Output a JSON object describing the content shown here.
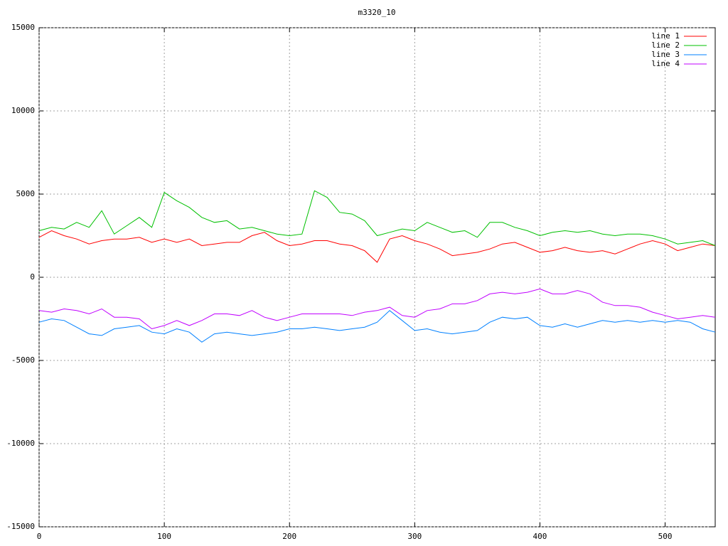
{
  "chart_data": {
    "type": "line",
    "title": "m3320_10",
    "x": [
      0,
      10,
      20,
      30,
      40,
      50,
      60,
      70,
      80,
      90,
      100,
      110,
      120,
      130,
      140,
      150,
      160,
      170,
      180,
      190,
      200,
      210,
      220,
      230,
      240,
      250,
      260,
      270,
      280,
      290,
      300,
      310,
      320,
      330,
      340,
      350,
      360,
      370,
      380,
      390,
      400,
      410,
      420,
      430,
      440,
      450,
      460,
      470,
      480,
      490,
      500,
      510,
      520,
      530,
      540
    ],
    "series": [
      {
        "name": "line 1",
        "color": "#ff0000",
        "values": [
          2400,
          2800,
          2500,
          2300,
          2000,
          2200,
          2300,
          2300,
          2400,
          2100,
          2300,
          2100,
          2300,
          1900,
          2000,
          2100,
          2100,
          2500,
          2700,
          2200,
          1900,
          2000,
          2200,
          2200,
          2000,
          1900,
          1600,
          900,
          2300,
          2500,
          2200,
          2000,
          1700,
          1300,
          1400,
          1500,
          1700,
          2000,
          2100,
          1800,
          1500,
          1600,
          1800,
          1600,
          1500,
          1600,
          1400,
          1700,
          2000,
          2200,
          2000,
          1600,
          1800,
          2000,
          1900
        ]
      },
      {
        "name": "line 2",
        "color": "#00c000",
        "values": [
          2800,
          3000,
          2900,
          3300,
          3000,
          4000,
          2600,
          3100,
          3600,
          3000,
          5100,
          4600,
          4200,
          3600,
          3300,
          3400,
          2900,
          3000,
          2800,
          2600,
          2500,
          2600,
          5200,
          4800,
          3900,
          3800,
          3400,
          2500,
          2700,
          2900,
          2800,
          3300,
          3000,
          2700,
          2800,
          2400,
          3300,
          3300,
          3000,
          2800,
          2500,
          2700,
          2800,
          2700,
          2800,
          2600,
          2500,
          2600,
          2600,
          2500,
          2300,
          2000,
          2100,
          2200,
          1900
        ]
      },
      {
        "name": "line 3",
        "color": "#0080ff",
        "values": [
          -2700,
          -2500,
          -2600,
          -3000,
          -3400,
          -3500,
          -3100,
          -3000,
          -2900,
          -3300,
          -3400,
          -3100,
          -3300,
          -3900,
          -3400,
          -3300,
          -3400,
          -3500,
          -3400,
          -3300,
          -3100,
          -3100,
          -3000,
          -3100,
          -3200,
          -3100,
          -3000,
          -2700,
          -2000,
          -2600,
          -3200,
          -3100,
          -3300,
          -3400,
          -3300,
          -3200,
          -2700,
          -2400,
          -2500,
          -2400,
          -2900,
          -3000,
          -2800,
          -3000,
          -2800,
          -2600,
          -2700,
          -2600,
          -2700,
          -2600,
          -2700,
          -2600,
          -2700,
          -3100,
          -3300
        ]
      },
      {
        "name": "line 4",
        "color": "#c000ff",
        "values": [
          -2000,
          -2100,
          -1900,
          -2000,
          -2200,
          -1900,
          -2400,
          -2400,
          -2500,
          -3100,
          -2900,
          -2600,
          -2900,
          -2600,
          -2200,
          -2200,
          -2300,
          -2000,
          -2400,
          -2600,
          -2400,
          -2200,
          -2200,
          -2200,
          -2200,
          -2300,
          -2100,
          -2000,
          -1800,
          -2300,
          -2400,
          -2000,
          -1900,
          -1600,
          -1600,
          -1400,
          -1000,
          -900,
          -1000,
          -900,
          -700,
          -1000,
          -1000,
          -800,
          -1000,
          -1500,
          -1700,
          -1700,
          -1800,
          -2100,
          -2300,
          -2500,
          -2400,
          -2300,
          -2400
        ]
      }
    ],
    "xlim": [
      0,
      540
    ],
    "ylim": [
      -15000,
      15000
    ],
    "xticks": [
      0,
      100,
      200,
      300,
      400,
      500
    ],
    "yticks": [
      -15000,
      -10000,
      -5000,
      0,
      5000,
      10000,
      15000
    ],
    "grid": true,
    "legend": "top-right"
  }
}
